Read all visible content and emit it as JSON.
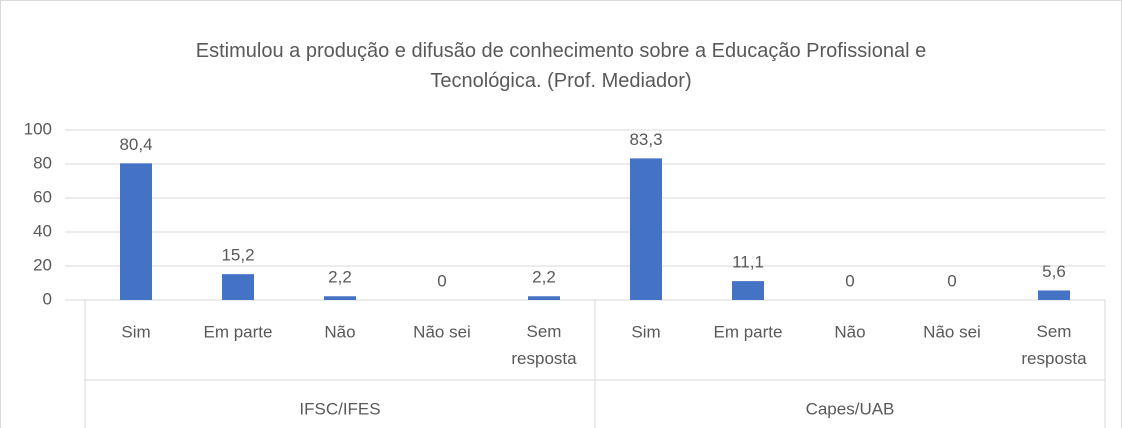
{
  "chart_data": {
    "type": "bar",
    "title": "Estimulou a produção e difusão de conhecimento sobre a Educação Profissional e Tecnológica. (Prof. Mediador)",
    "color": "#4472c4",
    "ylim": [
      0,
      100
    ],
    "yticks": [
      0,
      20,
      40,
      60,
      80,
      100
    ],
    "grid": true,
    "groups": [
      {
        "name": "IFSC/IFES",
        "categories": [
          "Sim",
          "Em parte",
          "Não",
          "Não sei",
          "Sem resposta"
        ],
        "values": [
          80.4,
          15.2,
          2.2,
          0,
          2.2
        ],
        "value_labels": [
          "80,4",
          "15,2",
          "2,2",
          "0",
          "2,2"
        ]
      },
      {
        "name": "Capes/UAB",
        "categories": [
          "Sim",
          "Em parte",
          "Não",
          "Não sei",
          "Sem resposta"
        ],
        "values": [
          83.3,
          11.1,
          0,
          0,
          5.6
        ],
        "value_labels": [
          "83,3",
          "11,1",
          "0",
          "0",
          "5,6"
        ]
      }
    ]
  }
}
